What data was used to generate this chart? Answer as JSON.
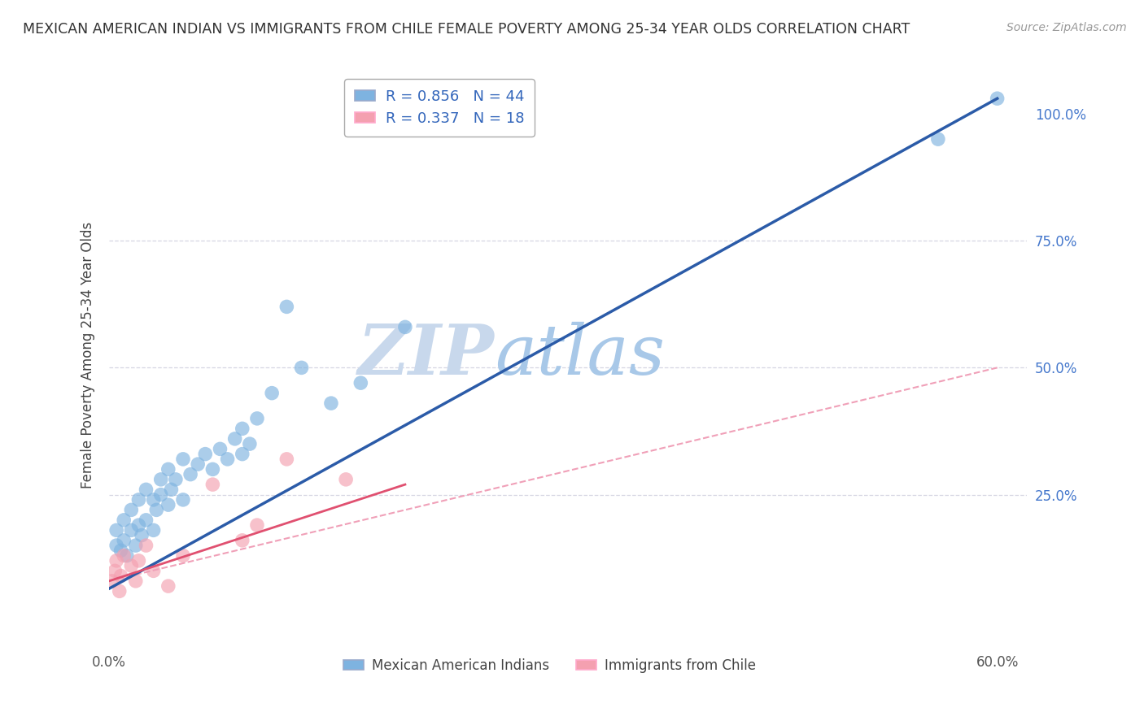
{
  "title": "MEXICAN AMERICAN INDIAN VS IMMIGRANTS FROM CHILE FEMALE POVERTY AMONG 25-34 YEAR OLDS CORRELATION CHART",
  "source": "Source: ZipAtlas.com",
  "ylabel": "Female Poverty Among 25-34 Year Olds",
  "xlim": [
    0.0,
    0.62
  ],
  "ylim": [
    -0.05,
    1.1
  ],
  "xtick_positions": [
    0.0,
    0.1,
    0.2,
    0.3,
    0.4,
    0.5,
    0.6
  ],
  "right_yticks": [
    0.0,
    0.25,
    0.5,
    0.75,
    1.0
  ],
  "right_yticklabels": [
    "",
    "25.0%",
    "50.0%",
    "75.0%",
    "100.0%"
  ],
  "legend1_label": "R = 0.856   N = 44",
  "legend2_label": "R = 0.337   N = 18",
  "legend_series1": "Mexican American Indians",
  "legend_series2": "Immigrants from Chile",
  "blue_color": "#7EB3E0",
  "pink_color": "#F4A0B0",
  "blue_line_color": "#2B5BA8",
  "pink_line_color": "#E05070",
  "pink_dash_color": "#F0A0B8",
  "grid_color": "#CCCCDD",
  "watermark_zip": "ZIP",
  "watermark_atlas": "atlas",
  "watermark_color": "#D8E8F5",
  "background_color": "#FFFFFF",
  "blue_scatter_x": [
    0.005,
    0.005,
    0.008,
    0.01,
    0.01,
    0.012,
    0.015,
    0.015,
    0.018,
    0.02,
    0.02,
    0.022,
    0.025,
    0.025,
    0.03,
    0.03,
    0.032,
    0.035,
    0.035,
    0.04,
    0.04,
    0.042,
    0.045,
    0.05,
    0.05,
    0.055,
    0.06,
    0.065,
    0.07,
    0.075,
    0.08,
    0.085,
    0.09,
    0.09,
    0.095,
    0.1,
    0.11,
    0.13,
    0.15,
    0.17,
    0.2,
    0.12,
    0.56,
    0.6
  ],
  "blue_scatter_y": [
    0.15,
    0.18,
    0.14,
    0.16,
    0.2,
    0.13,
    0.18,
    0.22,
    0.15,
    0.19,
    0.24,
    0.17,
    0.2,
    0.26,
    0.18,
    0.24,
    0.22,
    0.25,
    0.28,
    0.23,
    0.3,
    0.26,
    0.28,
    0.24,
    0.32,
    0.29,
    0.31,
    0.33,
    0.3,
    0.34,
    0.32,
    0.36,
    0.33,
    0.38,
    0.35,
    0.4,
    0.45,
    0.5,
    0.43,
    0.47,
    0.58,
    0.62,
    0.95,
    1.03
  ],
  "pink_scatter_x": [
    0.002,
    0.004,
    0.005,
    0.007,
    0.008,
    0.01,
    0.015,
    0.018,
    0.02,
    0.025,
    0.03,
    0.04,
    0.05,
    0.07,
    0.09,
    0.1,
    0.12,
    0.16
  ],
  "pink_scatter_y": [
    0.08,
    0.1,
    0.12,
    0.06,
    0.09,
    0.13,
    0.11,
    0.08,
    0.12,
    0.15,
    0.1,
    0.07,
    0.13,
    0.27,
    0.16,
    0.19,
    0.32,
    0.28
  ],
  "blue_line_x": [
    0.0,
    0.6
  ],
  "blue_line_y": [
    0.065,
    1.03
  ],
  "pink_solid_line_x": [
    0.0,
    0.2
  ],
  "pink_solid_line_y": [
    0.08,
    0.27
  ],
  "pink_dash_line_x": [
    0.0,
    0.6
  ],
  "pink_dash_line_y": [
    0.08,
    0.5
  ]
}
